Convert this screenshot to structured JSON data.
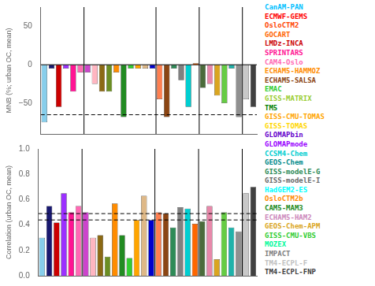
{
  "chart_data": [
    {
      "type": "bar",
      "ylabel": "MNB (%; urban OC, mean)",
      "categories": [
        null,
        null,
        null,
        null,
        null,
        null,
        null,
        null,
        null,
        null,
        null,
        null,
        null,
        null,
        null,
        null,
        null,
        null,
        null,
        null,
        null,
        null,
        null,
        null,
        null,
        null,
        null,
        null,
        null,
        null
      ],
      "values": [
        -75,
        -5,
        -55,
        -5,
        -35,
        -10,
        -10,
        -25,
        -35,
        -35,
        -10,
        -68,
        -5,
        -5,
        -5,
        -5,
        -45,
        -68,
        -5,
        -20,
        -55,
        2,
        -30,
        -25,
        -40,
        -50,
        -5,
        -68,
        -45,
        -55
      ],
      "colors": [
        "#87CEEB",
        "#191970",
        "#CC0000",
        "#9B30FF",
        "#FF1493",
        "#FF69B4",
        "#CC44CC",
        "#FFB6C1",
        "#8B6914",
        "#6B8E23",
        "#FF8C00",
        "#228B22",
        "#32CD32",
        "#FFA500",
        "#DEB887",
        "#0000CD",
        "#FF7F50",
        "#8B4513",
        "#2E8B57",
        "#808080",
        "#00CED1",
        "#FF6600",
        "#4B6B3B",
        "#E888AA",
        "#DAA520",
        "#66CC44",
        "#20B2AA",
        "#909090",
        "#C8C8C8",
        "#404040"
      ],
      "ylim": [
        -90,
        75
      ],
      "yticks": [
        {
          "value": -50,
          "label": "−50"
        },
        0,
        50
      ],
      "reference_lines": [
        {
          "value": 0,
          "line_style": "solid"
        },
        {
          "value": -65,
          "line_style": "dashed"
        }
      ],
      "separators": [
        6,
        16,
        22,
        28
      ],
      "grid": false,
      "tick_labels": "y",
      "annotations": [
        {
          "text": "CanAM-PAN",
          "color": "#00BFFF"
        },
        {
          "text": "ECMWF-GEMS",
          "color": "#FF0000"
        },
        {
          "text": "OsloCTM2",
          "color": "#FF4500"
        },
        {
          "text": "GOCART",
          "color": "#FF6600"
        },
        {
          "text": "LMDz-INCA",
          "color": "#CC0000"
        },
        {
          "text": "SPRINTARS",
          "color": "#FF1493"
        },
        {
          "text": "CAM4-Oslo",
          "color": "#FF69B4"
        },
        {
          "text": "ECHAM5-HAMMOZ",
          "color": "#FF8C00"
        },
        {
          "text": "ECHAM5-SALSA",
          "color": "#8B4513"
        },
        {
          "text": "EMAC",
          "color": "#32CD32"
        },
        {
          "text": "GISS-MATRIX",
          "color": "#9ACD32"
        },
        {
          "text": "TM5",
          "color": "#008000"
        },
        {
          "text": "GISS-CMU-TOMAS",
          "color": "#FFA500"
        },
        {
          "text": "GISS-TOMAS",
          "color": "#FFD700"
        },
        {
          "text": "GLOMAPbin",
          "color": "#6600CC"
        },
        {
          "text": "GLOMAPmode",
          "color": "#9900FF"
        },
        {
          "text": "CCSM4-Chem",
          "color": "#00CED1"
        },
        {
          "text": "GEOS-Chem",
          "color": "#008B8B"
        },
        {
          "text": "GISS-modelE-G",
          "color": "#2E8B57"
        },
        {
          "text": "GISS-modelE-I",
          "color": "#696969"
        },
        {
          "text": "HadGEM2-ES",
          "color": "#00FFFF"
        },
        {
          "text": "OsloCTM2b",
          "color": "#FF8C00"
        },
        {
          "text": "CAM5-MAM3",
          "color": "#228B22"
        },
        {
          "text": "ECHAM5-HAM2",
          "color": "#CC88BB"
        },
        {
          "text": "GEOS-Chem-APM",
          "color": "#DAA520"
        },
        {
          "text": "GISS-CMU-VBS",
          "color": "#32CD32"
        },
        {
          "text": "MOZEX",
          "color": "#00FA9A"
        },
        {
          "text": "IMPACT",
          "color": "#808080"
        },
        {
          "text": "TM4-ECPL-F",
          "color": "#C0C0C0"
        },
        {
          "text": "TM4-ECPL-FNP",
          "color": "#404040"
        }
      ]
    },
    {
      "type": "bar",
      "ylabel": "Correlation (urban OC, mean)",
      "categories": [
        null,
        null,
        null,
        null,
        null,
        null,
        null,
        null,
        null,
        null,
        null,
        null,
        null,
        null,
        null,
        null,
        null,
        null,
        null,
        null,
        null,
        null,
        null,
        null,
        null,
        null,
        null,
        null,
        null,
        null
      ],
      "values": [
        0.3,
        0.55,
        0.42,
        0.65,
        0.5,
        0.55,
        0.5,
        0.3,
        0.32,
        0.15,
        0.57,
        0.32,
        0.14,
        0.44,
        0.63,
        0.44,
        0.5,
        0.49,
        0.38,
        0.54,
        0.53,
        0.41,
        0.43,
        0.55,
        0.13,
        0.5,
        0.38,
        0.35,
        0.65,
        0.7
      ],
      "colors": [
        "#87CEEB",
        "#191970",
        "#CC0000",
        "#9B30FF",
        "#FF1493",
        "#FF69B4",
        "#CC44CC",
        "#FFB6C1",
        "#8B6914",
        "#6B8E23",
        "#FF8C00",
        "#228B22",
        "#32CD32",
        "#FFA500",
        "#DEB887",
        "#0000CD",
        "#FF7F50",
        "#8B4513",
        "#2E8B57",
        "#808080",
        "#00CED1",
        "#FF6600",
        "#4B6B3B",
        "#E888AA",
        "#DAA520",
        "#66CC44",
        "#20B2AA",
        "#909090",
        "#C8C8C8",
        "#404040"
      ],
      "ylim": [
        0,
        1.0
      ],
      "yticks": [
        {
          "value": 0,
          "label": "0.0"
        },
        0.2,
        0.4,
        0.6,
        0.8,
        {
          "value": 1,
          "label": "1.0"
        }
      ],
      "reference_lines": [
        {
          "value": 0.44,
          "line_style": "dashed"
        },
        {
          "value": 0.49,
          "line_style": "dashed"
        }
      ],
      "separators": [
        6,
        16,
        22,
        28
      ],
      "grid": false,
      "tick_labels": "y"
    }
  ]
}
